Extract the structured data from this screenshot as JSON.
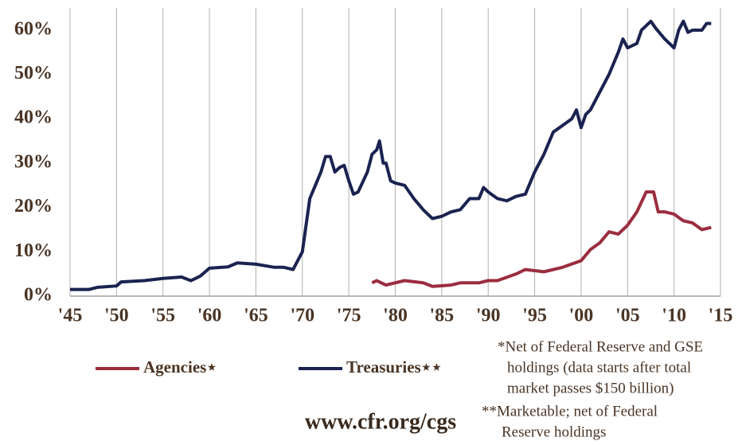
{
  "chart_data": {
    "type": "line",
    "xlim": [
      1945,
      2015
    ],
    "ylim": [
      0,
      65
    ],
    "xticks": [
      {
        "value": 1945,
        "label": "'45"
      },
      {
        "value": 1950,
        "label": "'50"
      },
      {
        "value": 1955,
        "label": "'55"
      },
      {
        "value": 1960,
        "label": "'60"
      },
      {
        "value": 1965,
        "label": "'65"
      },
      {
        "value": 1970,
        "label": "'70"
      },
      {
        "value": 1975,
        "label": "'75"
      },
      {
        "value": 1980,
        "label": "'80"
      },
      {
        "value": 1985,
        "label": "'85"
      },
      {
        "value": 1990,
        "label": "'90"
      },
      {
        "value": 1995,
        "label": "'95"
      },
      {
        "value": 2000,
        "label": "'00"
      },
      {
        "value": 2005,
        "label": "'05"
      },
      {
        "value": 2010,
        "label": "'10"
      },
      {
        "value": 2015,
        "label": "'15"
      }
    ],
    "yticks": [
      {
        "value": 0,
        "label": "0%"
      },
      {
        "value": 10,
        "label": "10%"
      },
      {
        "value": 20,
        "label": "20%"
      },
      {
        "value": 30,
        "label": "30%"
      },
      {
        "value": 40,
        "label": "40%"
      },
      {
        "value": 50,
        "label": "50%"
      },
      {
        "value": 60,
        "label": "60%"
      }
    ],
    "grid": true,
    "series": [
      {
        "name": "Agencies⋆",
        "color": "#9b2d3f",
        "x": [
          1977.5,
          1978,
          1979,
          1981,
          1983,
          1984,
          1986,
          1987,
          1989,
          1990,
          1991,
          1993,
          1994,
          1996,
          1998,
          2000,
          2001,
          2002,
          2003,
          2004,
          2005,
          2006,
          2007,
          2007.8,
          2008.3,
          2009,
          2010,
          2011,
          2012,
          2013,
          2014
        ],
        "values": [
          3,
          3.5,
          2.5,
          3.5,
          3,
          2.2,
          2.5,
          3,
          3,
          3.5,
          3.5,
          5,
          6,
          5.5,
          6.5,
          8,
          10.5,
          12,
          14.5,
          14,
          16,
          19,
          23.5,
          23.5,
          19,
          19,
          18.5,
          17,
          16.5,
          15,
          15.5
        ]
      },
      {
        "name": "Treasuries⋆⋆",
        "color": "#1a2350",
        "x": [
          1945,
          1947,
          1948,
          1950,
          1950.5,
          1953,
          1955,
          1957,
          1958,
          1959,
          1960,
          1962,
          1963,
          1965,
          1967,
          1968,
          1969,
          1970,
          1970.8,
          1972,
          1972.5,
          1973,
          1973.5,
          1974,
          1974.5,
          1975,
          1975.5,
          1976,
          1977,
          1977.5,
          1978,
          1978.3,
          1978.7,
          1979,
          1979.5,
          1980,
          1981,
          1982,
          1983,
          1984,
          1985,
          1986,
          1987,
          1988,
          1989,
          1989.5,
          1990,
          1991,
          1992,
          1993,
          1994,
          1995,
          1996,
          1997,
          1998,
          1999,
          1999.5,
          2000,
          2000.5,
          2001,
          2002,
          2003,
          2004,
          2004.5,
          2005,
          2006,
          2006.5,
          2007,
          2007.5,
          2008,
          2009,
          2010,
          2010.5,
          2011,
          2011.5,
          2012,
          2013,
          2013.5,
          2014
        ],
        "values": [
          1.5,
          1.5,
          2,
          2.3,
          3.2,
          3.5,
          4,
          4.3,
          3.5,
          4.5,
          6.3,
          6.6,
          7.5,
          7.2,
          6.5,
          6.5,
          6,
          10,
          22,
          28,
          31.5,
          31.5,
          28,
          29,
          29.5,
          26,
          23,
          23.5,
          28,
          32,
          33,
          35,
          30,
          30,
          26,
          25.5,
          25,
          22,
          19.5,
          17.5,
          18,
          19,
          19.5,
          22,
          22,
          24.5,
          23.5,
          22,
          21.5,
          22.5,
          23,
          28,
          32,
          37,
          38.5,
          40,
          42,
          38,
          41,
          42,
          46,
          50,
          55,
          58,
          56,
          57,
          60,
          61,
          62,
          60.5,
          58,
          56,
          60,
          62,
          59.5,
          60,
          60,
          61.5,
          61.5
        ]
      }
    ],
    "notes": [
      [
        "*Net of Federal Reserve and GSE",
        "holdings (data starts after total",
        "market passes $150 billion)"
      ],
      [
        "**Marketable; net of Federal",
        "Reserve holdings"
      ]
    ],
    "source": "www.cfr.org/cgs"
  }
}
